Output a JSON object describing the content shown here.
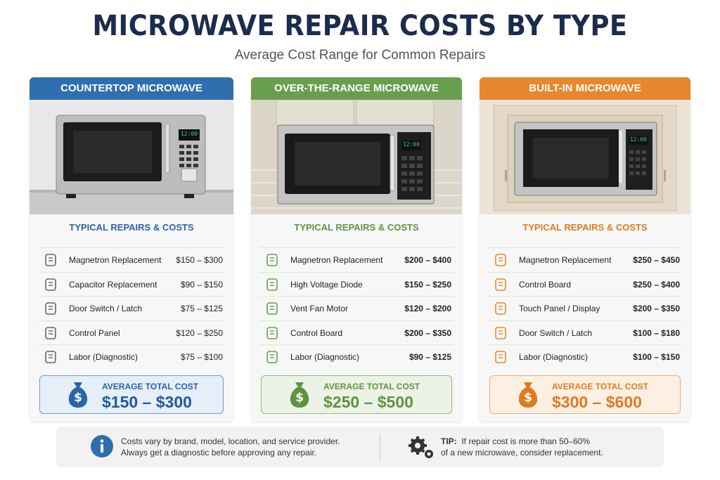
{
  "header": {
    "title": "MICROWAVE REPAIR COSTS BY TYPE",
    "subtitle": "Average Cost Range for Common Repairs"
  },
  "cards": [
    {
      "header": "COUNTERTOP MICROWAVE",
      "display": "12:00",
      "section": "TYPICAL REPAIRS & COSTS",
      "repairs": [
        {
          "name": "Magnetron Replacement",
          "cost": "$150 – $300"
        },
        {
          "name": "Capacitor Replacement",
          "cost": "$90 – $150"
        },
        {
          "name": "Door Switch / Latch",
          "cost": "$75 – $125"
        },
        {
          "name": "Control Panel",
          "cost": "$120 – $250"
        },
        {
          "name": "Labor (Diagnostic)",
          "cost": "$75 – $100"
        }
      ],
      "average_label": "AVERAGE TOTAL COST",
      "average_value": "$150 – $300"
    },
    {
      "header": "OVER-THE-RANGE MICROWAVE",
      "display": "12:00",
      "section": "TYPICAL REPAIRS & COSTS",
      "repairs": [
        {
          "name": "Magnetron Replacement",
          "cost": "$200 – $400"
        },
        {
          "name": "High Voltage Diode",
          "cost": "$150 – $250"
        },
        {
          "name": "Vent Fan Motor",
          "cost": "$120 – $200"
        },
        {
          "name": "Control Board",
          "cost": "$200 – $350"
        },
        {
          "name": "Labor (Diagnostic)",
          "cost": "$90 – $125"
        }
      ],
      "average_label": "AVERAGE TOTAL COST",
      "average_value": "$250 – $500"
    },
    {
      "header": "BUILT-IN MICROWAVE",
      "display": "12:00",
      "section": "TYPICAL REPAIRS & COSTS",
      "repairs": [
        {
          "name": "Magnetron Replacement",
          "cost": "$250 – $450"
        },
        {
          "name": "Control Board",
          "cost": "$250 – $400"
        },
        {
          "name": "Touch Panel / Display",
          "cost": "$200 – $350"
        },
        {
          "name": "Door Switch / Latch",
          "cost": "$100 – $180"
        },
        {
          "name": "Labor (Diagnostic)",
          "cost": "$100 – $150"
        }
      ],
      "average_label": "AVERAGE TOTAL COST",
      "average_value": "$300 – $600"
    }
  ],
  "footer": {
    "note": [
      "Costs vary by brand, model, location, and service provider.",
      "Always get a diagnostic before approving any repair."
    ],
    "tip_label": "TIP:",
    "tip": [
      "If repair cost is more than 50–60%",
      "of a new microwave, consider replacement."
    ]
  }
}
